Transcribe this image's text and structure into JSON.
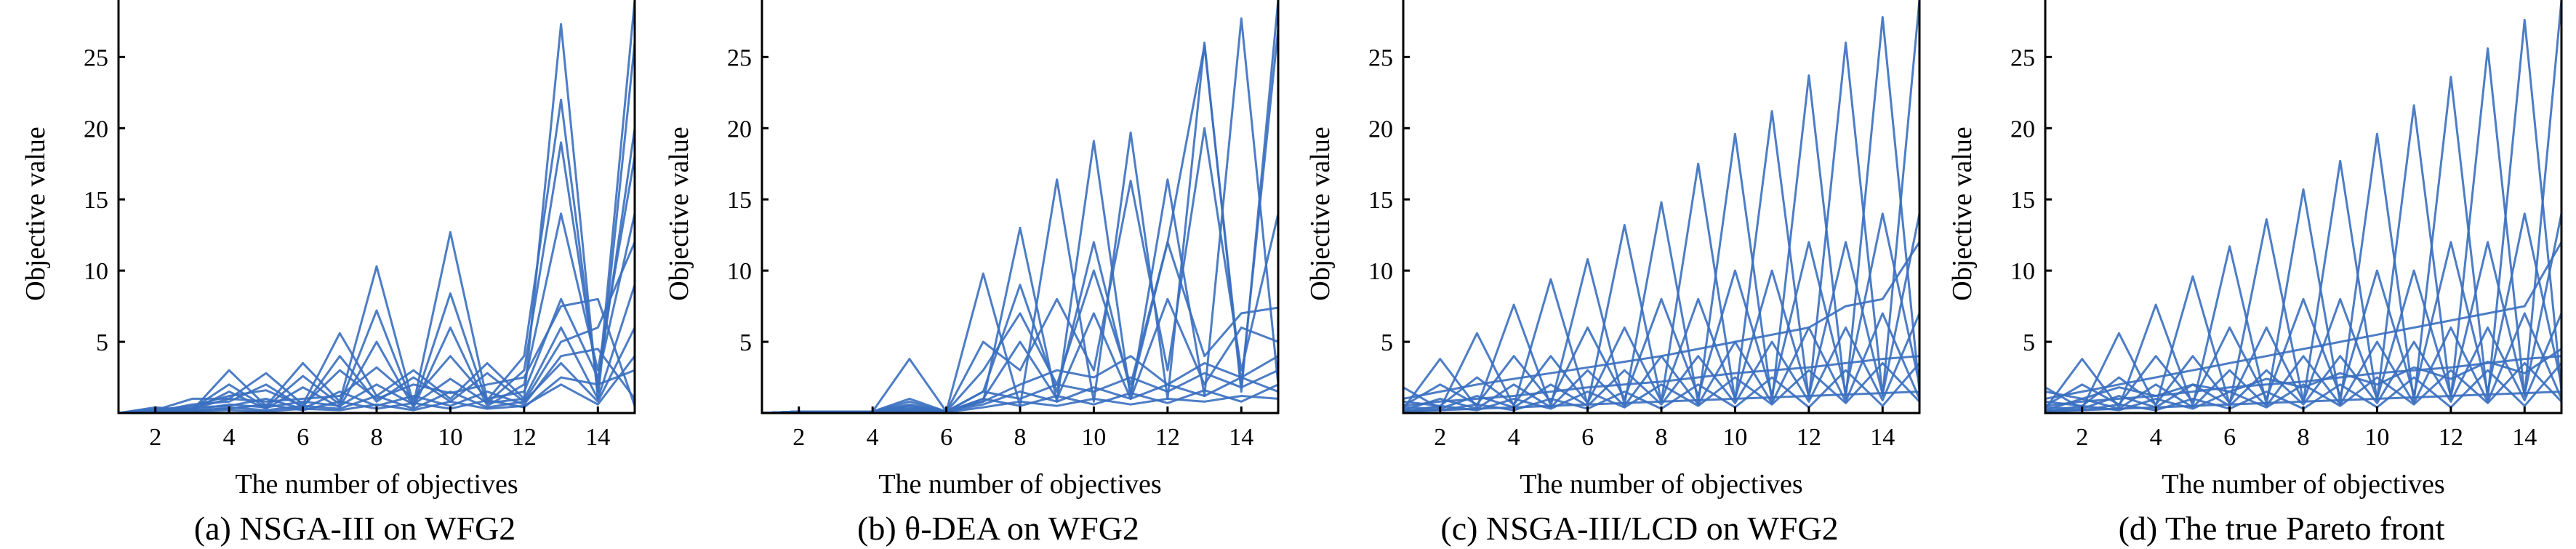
{
  "chart_data": [
    {
      "type": "line",
      "subtype": "parallel-coordinates",
      "caption": "(a) NSGA-III on WFG2",
      "xlabel": "The number of objectives",
      "ylabel": "Objective value",
      "xlim": [
        1,
        15
      ],
      "ylim": [
        0,
        29
      ],
      "xticks": [
        2,
        4,
        6,
        8,
        10,
        12,
        14
      ],
      "yticks": [
        5,
        10,
        15,
        20,
        25
      ],
      "line_color": "#3a6fc0",
      "series": [
        {
          "values": [
            0,
            0.4,
            0.2,
            3.0,
            0.5,
            3.5,
            0.8,
            10.3,
            0.6,
            12.7,
            0.9,
            4.0,
            22.0,
            1.5,
            29.0
          ]
        },
        {
          "values": [
            0,
            0.2,
            1.0,
            1.0,
            2.8,
            0.6,
            5.6,
            1.2,
            3.0,
            1.0,
            3.5,
            1.0,
            27.3,
            1.0,
            26.0
          ]
        },
        {
          "values": [
            0,
            0.3,
            0.3,
            2.0,
            0.4,
            2.6,
            0.6,
            7.2,
            0.5,
            8.4,
            0.7,
            3.0,
            19.0,
            2.0,
            20.0
          ]
        },
        {
          "values": [
            0,
            0.2,
            0.5,
            1.2,
            1.6,
            0.5,
            3.0,
            1.0,
            2.0,
            1.4,
            2.0,
            2.5,
            7.5,
            8.0,
            0.5
          ]
        },
        {
          "values": [
            0,
            0.2,
            0.2,
            1.5,
            0.3,
            1.8,
            0.4,
            5.0,
            0.4,
            6.0,
            0.5,
            2.0,
            14.0,
            3.0,
            18.0
          ]
        },
        {
          "values": [
            0,
            0.1,
            0.6,
            0.8,
            2.0,
            0.4,
            4.0,
            0.8,
            2.5,
            0.8,
            2.8,
            0.8,
            5.0,
            6.0,
            12.0
          ]
        },
        {
          "values": [
            0,
            0.1,
            0.3,
            1.0,
            0.8,
            1.0,
            1.2,
            3.2,
            1.0,
            4.0,
            1.0,
            1.5,
            8.0,
            2.5,
            14.0
          ]
        },
        {
          "values": [
            0,
            0.1,
            0.2,
            0.6,
            0.4,
            0.8,
            0.5,
            2.0,
            0.6,
            2.4,
            0.7,
            1.0,
            6.0,
            1.0,
            9.0
          ]
        },
        {
          "values": [
            0,
            0.1,
            0.4,
            0.5,
            1.0,
            0.3,
            1.5,
            0.5,
            1.2,
            0.5,
            1.5,
            0.6,
            4.0,
            4.5,
            1.0
          ]
        },
        {
          "values": [
            0,
            0.1,
            0.1,
            0.4,
            0.2,
            0.5,
            0.3,
            1.2,
            0.3,
            1.5,
            0.4,
            0.8,
            3.5,
            0.8,
            6.0
          ]
        },
        {
          "values": [
            0,
            0.05,
            0.2,
            0.3,
            0.6,
            0.2,
            0.8,
            0.3,
            0.7,
            0.3,
            0.9,
            0.4,
            2.5,
            2.0,
            3.0
          ]
        },
        {
          "values": [
            0,
            0.05,
            0.1,
            0.2,
            0.1,
            0.3,
            0.2,
            0.6,
            0.2,
            0.8,
            0.3,
            0.5,
            2.0,
            0.6,
            4.0
          ]
        }
      ]
    },
    {
      "type": "line",
      "subtype": "parallel-coordinates",
      "caption": "(b) θ-DEA on WFG2",
      "xlabel": "The number of objectives",
      "ylabel": "Objective value",
      "xlim": [
        1,
        15
      ],
      "ylim": [
        0,
        29
      ],
      "xticks": [
        2,
        4,
        6,
        8,
        10,
        12,
        14
      ],
      "yticks": [
        5,
        10,
        15,
        20,
        25
      ],
      "line_color": "#3a6fc0",
      "series": [
        {
          "values": [
            0,
            0.1,
            0.1,
            0.1,
            3.8,
            0.1,
            9.8,
            0.5,
            16.4,
            0.8,
            19.7,
            1.0,
            26.0,
            1.5,
            29.0
          ]
        },
        {
          "values": [
            0,
            0.1,
            0.1,
            0.1,
            0.5,
            0.1,
            0.8,
            13.0,
            0.8,
            19.1,
            1.0,
            16.4,
            1.2,
            27.7,
            2.0
          ]
        },
        {
          "values": [
            0,
            0.1,
            0.1,
            0.1,
            0.8,
            0.1,
            1.5,
            9.0,
            1.5,
            12.0,
            1.5,
            12.0,
            25.8,
            2.0,
            27.0
          ]
        },
        {
          "values": [
            0,
            0.1,
            0.1,
            0.1,
            1.0,
            0.1,
            5.0,
            3.0,
            8.0,
            3.0,
            16.3,
            3.0,
            20.0,
            3.0,
            14.0
          ]
        },
        {
          "values": [
            0,
            0.1,
            0.1,
            0.1,
            0.6,
            0.1,
            3.0,
            7.0,
            2.0,
            10.0,
            2.0,
            12.0,
            4.0,
            7.0,
            7.4
          ]
        },
        {
          "values": [
            0,
            0.1,
            0.1,
            0.1,
            0.4,
            0.1,
            1.0,
            5.0,
            1.0,
            7.0,
            1.0,
            8.0,
            2.0,
            6.0,
            5.0
          ]
        },
        {
          "values": [
            0,
            0.1,
            0.1,
            0.1,
            0.3,
            0.1,
            0.8,
            2.0,
            3.0,
            2.5,
            4.0,
            2.0,
            3.5,
            2.5,
            4.0
          ]
        },
        {
          "values": [
            0,
            0.1,
            0.1,
            0.1,
            0.2,
            0.1,
            1.5,
            1.0,
            2.0,
            1.5,
            2.5,
            1.5,
            2.8,
            1.8,
            3.0
          ]
        },
        {
          "values": [
            0,
            0.1,
            0.1,
            0.1,
            0.2,
            0.1,
            0.6,
            1.5,
            0.8,
            1.8,
            1.0,
            2.0,
            1.2,
            2.5,
            1.5
          ]
        },
        {
          "values": [
            0,
            0.05,
            0.05,
            0.05,
            0.1,
            0.05,
            0.4,
            0.8,
            0.5,
            1.0,
            0.6,
            1.0,
            0.8,
            1.2,
            1.0
          ]
        },
        {
          "values": [
            0,
            0.05,
            0.05,
            0.05,
            0.1,
            0.05,
            1.0,
            0.5,
            1.2,
            0.6,
            1.4,
            0.7,
            1.6,
            0.8,
            2.0
          ]
        }
      ]
    },
    {
      "type": "line",
      "subtype": "parallel-coordinates",
      "caption": "(c) NSGA-III/LCD on WFG2",
      "xlabel": "The number of objectives",
      "ylabel": "Objective value",
      "xlim": [
        1,
        15
      ],
      "ylim": [
        0,
        29
      ],
      "xticks": [
        2,
        4,
        6,
        8,
        10,
        12,
        14
      ],
      "yticks": [
        5,
        10,
        15,
        20,
        25
      ],
      "line_color": "#3a6fc0",
      "series": [
        {
          "values": [
            1.8,
            0.3,
            5.6,
            0.5,
            9.4,
            0.6,
            13.2,
            0.8,
            17.5,
            0.9,
            21.2,
            1.0,
            26.0,
            1.2,
            29.0
          ]
        },
        {
          "values": [
            0.3,
            3.8,
            0.4,
            7.6,
            0.5,
            10.8,
            0.6,
            14.8,
            0.7,
            19.6,
            0.8,
            23.7,
            1.0,
            27.8,
            1.5
          ]
        },
        {
          "values": [
            1.0,
            1.5,
            2.0,
            2.4,
            2.8,
            3.2,
            3.6,
            4.0,
            4.5,
            5.0,
            5.5,
            6.0,
            7.5,
            8.0,
            12.0
          ]
        },
        {
          "values": [
            0.5,
            2.0,
            0.6,
            4.0,
            0.8,
            6.0,
            1.0,
            8.0,
            1.2,
            10.0,
            1.3,
            12.0,
            1.5,
            14.0,
            2.0
          ]
        },
        {
          "values": [
            0.8,
            0.5,
            2.5,
            0.6,
            4.0,
            0.7,
            6.0,
            0.8,
            8.0,
            1.0,
            10.0,
            1.2,
            12.0,
            1.3,
            14.0
          ]
        },
        {
          "values": [
            0.2,
            1.0,
            0.3,
            2.0,
            0.4,
            3.0,
            0.5,
            4.0,
            0.6,
            5.0,
            0.7,
            6.0,
            0.8,
            7.0,
            1.0
          ]
        },
        {
          "values": [
            0.4,
            0.3,
            1.2,
            0.4,
            2.0,
            0.5,
            3.0,
            0.6,
            4.0,
            0.7,
            5.0,
            0.8,
            6.0,
            0.9,
            7.0
          ]
        },
        {
          "values": [
            0.1,
            0.5,
            0.2,
            1.0,
            0.3,
            1.5,
            0.4,
            2.0,
            0.5,
            2.5,
            0.6,
            3.0,
            0.7,
            3.5,
            0.8
          ]
        },
        {
          "values": [
            0.2,
            0.2,
            0.6,
            0.2,
            1.0,
            0.3,
            1.5,
            0.3,
            2.0,
            0.4,
            2.5,
            0.4,
            3.0,
            0.5,
            3.5
          ]
        },
        {
          "values": [
            0.1,
            0.2,
            0.3,
            0.4,
            0.5,
            0.6,
            0.7,
            0.8,
            0.9,
            1.0,
            1.1,
            1.2,
            1.3,
            1.4,
            1.5
          ]
        },
        {
          "values": [
            0.5,
            0.8,
            1.0,
            1.2,
            1.5,
            1.8,
            2.0,
            2.2,
            2.5,
            2.8,
            3.0,
            3.2,
            3.5,
            3.8,
            4.0
          ]
        }
      ]
    },
    {
      "type": "line",
      "subtype": "parallel-coordinates",
      "caption": "(d) The true Pareto front",
      "xlabel": "The number of objectives",
      "ylabel": "Objective value",
      "xlim": [
        1,
        15
      ],
      "ylim": [
        0,
        29
      ],
      "xticks": [
        2,
        4,
        6,
        8,
        10,
        12,
        14
      ],
      "yticks": [
        5,
        10,
        15,
        20,
        25
      ],
      "line_color": "#3a6fc0",
      "series": [
        {
          "values": [
            1.8,
            0.3,
            5.6,
            0.5,
            9.6,
            0.6,
            13.6,
            0.8,
            17.7,
            0.9,
            21.6,
            1.0,
            25.6,
            1.2,
            29.0
          ]
        },
        {
          "values": [
            0.3,
            3.8,
            0.4,
            7.6,
            0.5,
            11.7,
            0.6,
            15.7,
            0.7,
            19.6,
            0.8,
            23.6,
            1.0,
            27.6,
            1.5
          ]
        },
        {
          "values": [
            1.0,
            1.5,
            2.0,
            2.5,
            3.0,
            3.5,
            4.0,
            4.5,
            5.0,
            5.5,
            6.0,
            6.5,
            7.0,
            7.5,
            12.0
          ]
        },
        {
          "values": [
            0.5,
            2.0,
            0.6,
            4.0,
            0.8,
            6.0,
            1.0,
            8.0,
            1.2,
            10.0,
            1.3,
            12.0,
            1.5,
            14.0,
            2.0
          ]
        },
        {
          "values": [
            0.8,
            0.5,
            2.5,
            0.6,
            4.0,
            0.7,
            6.0,
            0.8,
            8.0,
            1.0,
            10.0,
            1.2,
            12.0,
            1.3,
            14.0
          ]
        },
        {
          "values": [
            0.2,
            1.0,
            0.3,
            2.0,
            0.4,
            3.0,
            0.5,
            4.0,
            0.6,
            5.0,
            0.7,
            6.0,
            0.8,
            7.0,
            1.0
          ]
        },
        {
          "values": [
            0.4,
            0.3,
            1.2,
            0.4,
            2.0,
            0.5,
            3.0,
            0.6,
            4.0,
            0.7,
            5.0,
            0.8,
            6.0,
            0.9,
            7.0
          ]
        },
        {
          "values": [
            0.1,
            0.5,
            0.2,
            1.0,
            0.3,
            1.5,
            0.4,
            2.0,
            0.5,
            2.5,
            0.6,
            3.0,
            0.7,
            3.5,
            0.8
          ]
        },
        {
          "values": [
            0.2,
            0.2,
            0.6,
            0.2,
            1.0,
            0.3,
            1.5,
            0.3,
            2.0,
            0.4,
            2.5,
            0.4,
            3.0,
            0.5,
            3.5
          ]
        },
        {
          "values": [
            0.1,
            0.2,
            0.3,
            0.4,
            0.5,
            0.6,
            0.7,
            0.8,
            0.9,
            1.0,
            1.1,
            1.2,
            1.3,
            1.4,
            1.5
          ]
        },
        {
          "values": [
            0.5,
            0.8,
            1.0,
            1.2,
            1.5,
            1.8,
            2.0,
            2.2,
            2.5,
            2.8,
            3.0,
            3.2,
            3.5,
            3.8,
            4.0
          ]
        },
        {
          "values": [
            1.5,
            1.0,
            1.8,
            1.2,
            2.0,
            1.5,
            2.4,
            1.8,
            2.8,
            2.0,
            3.2,
            2.4,
            3.6,
            2.8,
            4.5
          ]
        }
      ]
    }
  ]
}
